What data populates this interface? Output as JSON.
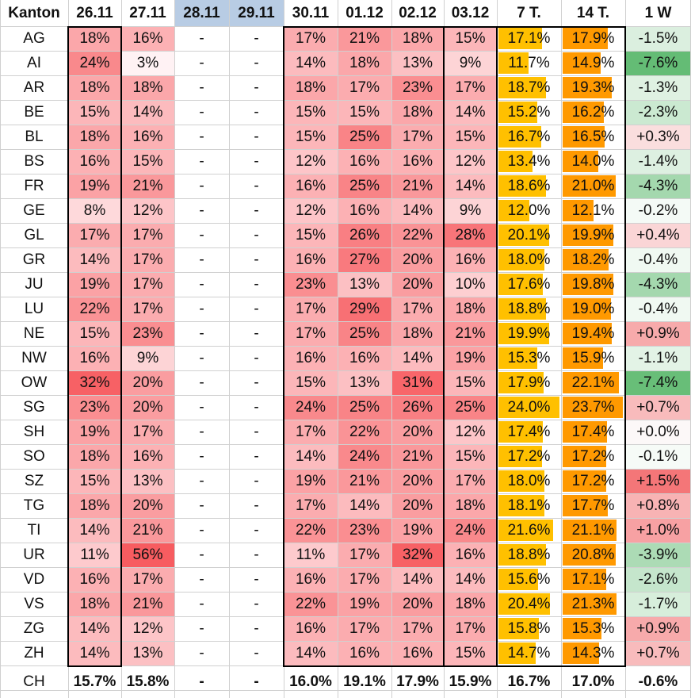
{
  "headers": [
    "Kanton",
    "26.11",
    "27.11",
    "28.11",
    "29.11",
    "30.11",
    "01.12",
    "02.12",
    "03.12",
    "7 T.",
    "14 T.",
    "1 W"
  ],
  "weekend_header_color": "#b8cce4",
  "bar_colors": {
    "seven_day": "#ffc000",
    "fourteen_day": "#ff9900"
  },
  "rows": [
    {
      "k": "AG",
      "d": [
        "18%",
        "16%",
        "-",
        "-",
        "17%",
        "21%",
        "18%",
        "15%"
      ],
      "t7": "17.1%",
      "t14": "17.9%",
      "w": "-1.5%"
    },
    {
      "k": "AI",
      "d": [
        "24%",
        "3%",
        "-",
        "-",
        "14%",
        "18%",
        "13%",
        "9%"
      ],
      "t7": "11.7%",
      "t14": "14.9%",
      "w": "-7.6%"
    },
    {
      "k": "AR",
      "d": [
        "18%",
        "18%",
        "-",
        "-",
        "18%",
        "17%",
        "23%",
        "17%"
      ],
      "t7": "18.7%",
      "t14": "19.3%",
      "w": "-1.3%"
    },
    {
      "k": "BE",
      "d": [
        "15%",
        "14%",
        "-",
        "-",
        "15%",
        "15%",
        "18%",
        "14%"
      ],
      "t7": "15.2%",
      "t14": "16.2%",
      "w": "-2.3%"
    },
    {
      "k": "BL",
      "d": [
        "18%",
        "16%",
        "-",
        "-",
        "15%",
        "25%",
        "17%",
        "15%"
      ],
      "t7": "16.7%",
      "t14": "16.5%",
      "w": "+0.3%"
    },
    {
      "k": "BS",
      "d": [
        "16%",
        "15%",
        "-",
        "-",
        "12%",
        "16%",
        "16%",
        "12%"
      ],
      "t7": "13.4%",
      "t14": "14.0%",
      "w": "-1.4%"
    },
    {
      "k": "FR",
      "d": [
        "19%",
        "21%",
        "-",
        "-",
        "16%",
        "25%",
        "21%",
        "14%"
      ],
      "t7": "18.6%",
      "t14": "21.0%",
      "w": "-4.3%"
    },
    {
      "k": "GE",
      "d": [
        "8%",
        "12%",
        "-",
        "-",
        "12%",
        "16%",
        "14%",
        "9%"
      ],
      "t7": "12.0%",
      "t14": "12.1%",
      "w": "-0.2%"
    },
    {
      "k": "GL",
      "d": [
        "17%",
        "17%",
        "-",
        "-",
        "15%",
        "26%",
        "22%",
        "28%"
      ],
      "t7": "20.1%",
      "t14": "19.9%",
      "w": "+0.4%"
    },
    {
      "k": "GR",
      "d": [
        "14%",
        "17%",
        "-",
        "-",
        "16%",
        "27%",
        "20%",
        "16%"
      ],
      "t7": "18.0%",
      "t14": "18.2%",
      "w": "-0.4%"
    },
    {
      "k": "JU",
      "d": [
        "19%",
        "17%",
        "-",
        "-",
        "23%",
        "13%",
        "20%",
        "10%"
      ],
      "t7": "17.6%",
      "t14": "19.8%",
      "w": "-4.3%"
    },
    {
      "k": "LU",
      "d": [
        "22%",
        "17%",
        "-",
        "-",
        "17%",
        "29%",
        "17%",
        "18%"
      ],
      "t7": "18.8%",
      "t14": "19.0%",
      "w": "-0.4%"
    },
    {
      "k": "NE",
      "d": [
        "15%",
        "23%",
        "-",
        "-",
        "17%",
        "25%",
        "18%",
        "21%"
      ],
      "t7": "19.9%",
      "t14": "19.4%",
      "w": "+0.9%"
    },
    {
      "k": "NW",
      "d": [
        "16%",
        "9%",
        "-",
        "-",
        "16%",
        "16%",
        "14%",
        "19%"
      ],
      "t7": "15.3%",
      "t14": "15.9%",
      "w": "-1.1%"
    },
    {
      "k": "OW",
      "d": [
        "32%",
        "20%",
        "-",
        "-",
        "15%",
        "13%",
        "31%",
        "15%"
      ],
      "t7": "17.9%",
      "t14": "22.1%",
      "w": "-7.4%"
    },
    {
      "k": "SG",
      "d": [
        "23%",
        "20%",
        "-",
        "-",
        "24%",
        "25%",
        "26%",
        "25%"
      ],
      "t7": "24.0%",
      "t14": "23.7%",
      "w": "+0.7%"
    },
    {
      "k": "SH",
      "d": [
        "19%",
        "17%",
        "-",
        "-",
        "17%",
        "22%",
        "20%",
        "12%"
      ],
      "t7": "17.4%",
      "t14": "17.4%",
      "w": "+0.0%"
    },
    {
      "k": "SO",
      "d": [
        "18%",
        "16%",
        "-",
        "-",
        "14%",
        "24%",
        "21%",
        "15%"
      ],
      "t7": "17.2%",
      "t14": "17.2%",
      "w": "-0.1%"
    },
    {
      "k": "SZ",
      "d": [
        "15%",
        "13%",
        "-",
        "-",
        "19%",
        "21%",
        "20%",
        "17%"
      ],
      "t7": "18.0%",
      "t14": "17.2%",
      "w": "+1.5%"
    },
    {
      "k": "TG",
      "d": [
        "18%",
        "20%",
        "-",
        "-",
        "17%",
        "14%",
        "20%",
        "18%"
      ],
      "t7": "18.1%",
      "t14": "17.7%",
      "w": "+0.8%"
    },
    {
      "k": "TI",
      "d": [
        "14%",
        "21%",
        "-",
        "-",
        "22%",
        "23%",
        "19%",
        "24%"
      ],
      "t7": "21.6%",
      "t14": "21.1%",
      "w": "+1.0%"
    },
    {
      "k": "UR",
      "d": [
        "11%",
        "56%",
        "-",
        "-",
        "11%",
        "17%",
        "32%",
        "16%"
      ],
      "t7": "18.8%",
      "t14": "20.8%",
      "w": "-3.9%"
    },
    {
      "k": "VD",
      "d": [
        "16%",
        "17%",
        "-",
        "-",
        "16%",
        "17%",
        "14%",
        "14%"
      ],
      "t7": "15.6%",
      "t14": "17.1%",
      "w": "-2.6%"
    },
    {
      "k": "VS",
      "d": [
        "18%",
        "21%",
        "-",
        "-",
        "22%",
        "19%",
        "20%",
        "18%"
      ],
      "t7": "20.4%",
      "t14": "21.3%",
      "w": "-1.7%"
    },
    {
      "k": "ZG",
      "d": [
        "14%",
        "12%",
        "-",
        "-",
        "16%",
        "17%",
        "17%",
        "17%"
      ],
      "t7": "15.8%",
      "t14": "15.3%",
      "w": "+0.9%"
    },
    {
      "k": "ZH",
      "d": [
        "14%",
        "13%",
        "-",
        "-",
        "14%",
        "16%",
        "16%",
        "15%"
      ],
      "t7": "14.7%",
      "t14": "14.3%",
      "w": "+0.7%"
    }
  ],
  "total": {
    "k": "CH",
    "d": [
      "15.7%",
      "15.8%",
      "-",
      "-",
      "16.0%",
      "19.1%",
      "17.9%",
      "15.9%"
    ],
    "t7": "16.7%",
    "t14": "17.0%",
    "w": "-0.6%"
  }
}
